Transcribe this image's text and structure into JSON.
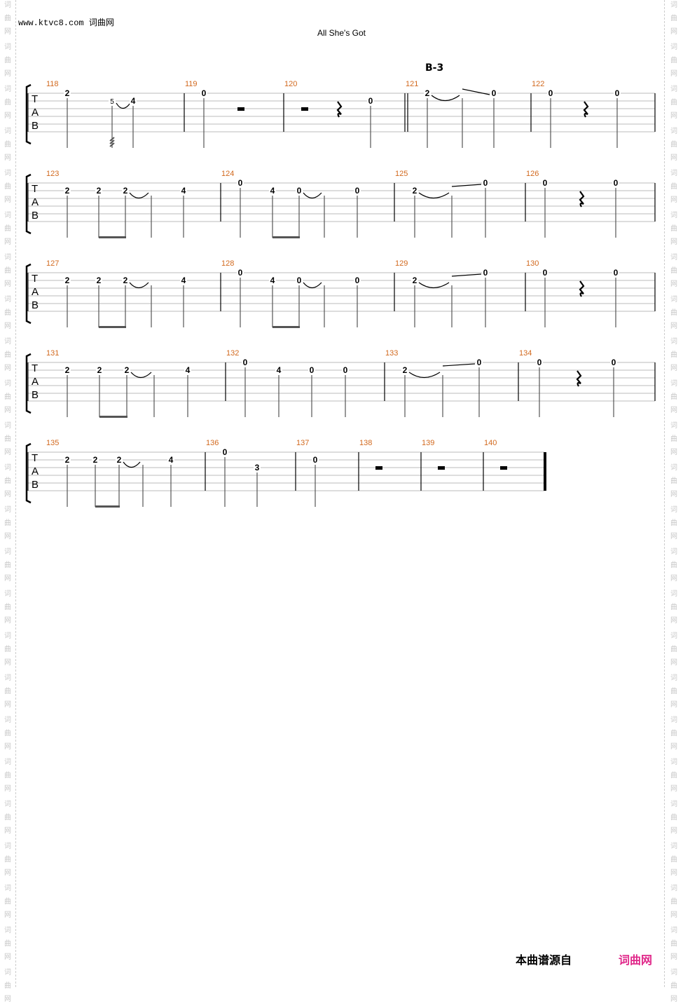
{
  "header": {
    "site": "www.ktvc8.com 词曲网",
    "title": "All She's Got"
  },
  "watermark": {
    "text": [
      "词",
      "曲",
      "网"
    ],
    "color": "#c8c8c8"
  },
  "section_marker": "B-3",
  "tab_clef": [
    "T",
    "A",
    "B"
  ],
  "colors": {
    "measure_number": "#d2691e",
    "brand": "#e0288a"
  },
  "footer": {
    "source_label": "本曲谱源自",
    "brand": "词曲网"
  },
  "systems": [
    {
      "measures": [
        {
          "number": "118",
          "events": [
            {
              "t": "note",
              "s": 1,
              "f": "2"
            },
            {
              "t": "note",
              "s": 2,
              "f": "5",
              "grace": true,
              "tie": true,
              "tremolo": true
            },
            {
              "t": "note",
              "s": 2,
              "f": "4"
            }
          ]
        },
        {
          "number": "119",
          "events": [
            {
              "t": "note",
              "s": 1,
              "f": "0"
            },
            {
              "t": "rest",
              "v": "half"
            }
          ]
        },
        {
          "number": "120",
          "events": [
            {
              "t": "rest",
              "v": "half"
            },
            {
              "t": "rest",
              "v": "quarter"
            },
            {
              "t": "note",
              "s": 2,
              "f": "0"
            }
          ]
        },
        {
          "number": "121",
          "double_bar_before": true,
          "events": [
            {
              "t": "note",
              "s": 1,
              "f": "2",
              "tie": true
            },
            {
              "t": "cont",
              "s": 1,
              "slide": true
            },
            {
              "t": "note",
              "s": 1,
              "f": "0"
            }
          ]
        },
        {
          "number": "122",
          "events": [
            {
              "t": "note",
              "s": 1,
              "f": "0"
            },
            {
              "t": "rest",
              "v": "quarter"
            },
            {
              "t": "note",
              "s": 1,
              "f": "0"
            }
          ]
        }
      ]
    },
    {
      "measures": [
        {
          "number": "123",
          "beams": [
            [
              1,
              2
            ]
          ],
          "events": [
            {
              "t": "note",
              "s": 2,
              "f": "2"
            },
            {
              "t": "note",
              "s": 2,
              "f": "2"
            },
            {
              "t": "note",
              "s": 2,
              "f": "2",
              "tie": true
            },
            {
              "t": "cont",
              "s": 2
            },
            {
              "t": "note",
              "s": 2,
              "f": "4"
            }
          ]
        },
        {
          "number": "124",
          "beams": [
            [
              1,
              2
            ]
          ],
          "events": [
            {
              "t": "note",
              "s": 1,
              "f": "0"
            },
            {
              "t": "note",
              "s": 2,
              "f": "4"
            },
            {
              "t": "note",
              "s": 2,
              "f": "0",
              "tie": true
            },
            {
              "t": "cont",
              "s": 2
            },
            {
              "t": "note",
              "s": 2,
              "f": "0"
            }
          ]
        },
        {
          "number": "125",
          "events": [
            {
              "t": "note",
              "s": 2,
              "f": "2",
              "tie": true
            },
            {
              "t": "cont",
              "s": 2,
              "slide": true
            },
            {
              "t": "note",
              "s": 1,
              "f": "0"
            }
          ]
        },
        {
          "number": "126",
          "events": [
            {
              "t": "note",
              "s": 1,
              "f": "0"
            },
            {
              "t": "rest",
              "v": "quarter"
            },
            {
              "t": "note",
              "s": 1,
              "f": "0"
            }
          ]
        }
      ]
    },
    {
      "measures": [
        {
          "number": "127",
          "beams": [
            [
              1,
              2
            ]
          ],
          "events": [
            {
              "t": "note",
              "s": 2,
              "f": "2"
            },
            {
              "t": "note",
              "s": 2,
              "f": "2"
            },
            {
              "t": "note",
              "s": 2,
              "f": "2",
              "tie": true
            },
            {
              "t": "cont",
              "s": 2
            },
            {
              "t": "note",
              "s": 2,
              "f": "4"
            }
          ]
        },
        {
          "number": "128",
          "beams": [
            [
              1,
              2
            ]
          ],
          "events": [
            {
              "t": "note",
              "s": 1,
              "f": "0"
            },
            {
              "t": "note",
              "s": 2,
              "f": "4"
            },
            {
              "t": "note",
              "s": 2,
              "f": "0",
              "tie": true
            },
            {
              "t": "cont",
              "s": 2
            },
            {
              "t": "note",
              "s": 2,
              "f": "0"
            }
          ]
        },
        {
          "number": "129",
          "events": [
            {
              "t": "note",
              "s": 2,
              "f": "2",
              "tie": true
            },
            {
              "t": "cont",
              "s": 2,
              "slide": true
            },
            {
              "t": "note",
              "s": 1,
              "f": "0"
            }
          ]
        },
        {
          "number": "130",
          "events": [
            {
              "t": "note",
              "s": 1,
              "f": "0"
            },
            {
              "t": "rest",
              "v": "quarter"
            },
            {
              "t": "note",
              "s": 1,
              "f": "0"
            }
          ]
        }
      ]
    },
    {
      "measures": [
        {
          "number": "131",
          "beams": [
            [
              1,
              2
            ]
          ],
          "events": [
            {
              "t": "note",
              "s": 2,
              "f": "2"
            },
            {
              "t": "note",
              "s": 2,
              "f": "2"
            },
            {
              "t": "note",
              "s": 2,
              "f": "2",
              "tie": true
            },
            {
              "t": "cont",
              "s": 2
            },
            {
              "t": "note",
              "s": 2,
              "f": "4"
            }
          ]
        },
        {
          "number": "132",
          "events": [
            {
              "t": "note",
              "s": 1,
              "f": "0"
            },
            {
              "t": "note",
              "s": 2,
              "f": "4"
            },
            {
              "t": "note",
              "s": 2,
              "f": "0"
            },
            {
              "t": "note",
              "s": 2,
              "f": "0"
            }
          ]
        },
        {
          "number": "133",
          "events": [
            {
              "t": "note",
              "s": 2,
              "f": "2",
              "tie": true
            },
            {
              "t": "cont",
              "s": 2,
              "slide": true
            },
            {
              "t": "note",
              "s": 1,
              "f": "0"
            }
          ]
        },
        {
          "number": "134",
          "events": [
            {
              "t": "note",
              "s": 1,
              "f": "0"
            },
            {
              "t": "rest",
              "v": "quarter"
            },
            {
              "t": "note",
              "s": 1,
              "f": "0"
            }
          ]
        }
      ]
    },
    {
      "measures": [
        {
          "number": "135",
          "beams": [
            [
              1,
              2
            ]
          ],
          "events": [
            {
              "t": "note",
              "s": 2,
              "f": "2"
            },
            {
              "t": "note",
              "s": 2,
              "f": "2"
            },
            {
              "t": "note",
              "s": 2,
              "f": "2",
              "tie": true
            },
            {
              "t": "cont",
              "s": 2
            },
            {
              "t": "note",
              "s": 2,
              "f": "4"
            }
          ]
        },
        {
          "number": "136",
          "events": [
            {
              "t": "note",
              "s": 1,
              "f": "0"
            },
            {
              "t": "note",
              "s": 3,
              "f": "3"
            }
          ]
        },
        {
          "number": "137",
          "events": [
            {
              "t": "note",
              "s": 2,
              "f": "0"
            }
          ]
        },
        {
          "number": "138",
          "events": [
            {
              "t": "rest",
              "v": "half"
            }
          ]
        },
        {
          "number": "139",
          "events": [
            {
              "t": "rest",
              "v": "half"
            }
          ]
        },
        {
          "number": "140",
          "final_bar": true,
          "events": [
            {
              "t": "rest",
              "v": "half"
            }
          ]
        }
      ]
    }
  ]
}
